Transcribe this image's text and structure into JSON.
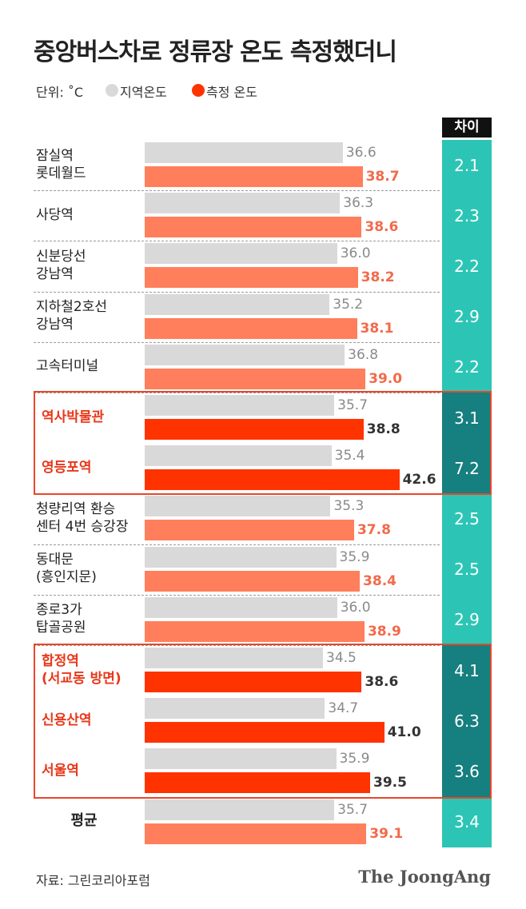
{
  "title": "중앙버스차로 정류장 온도 측정했더니",
  "unit": "단위: ˚C",
  "footer": {
    "source": "자료: 그린코리아포럼",
    "brand": "The JoongAng"
  },
  "chart_data": {
    "type": "bar",
    "orientation": "horizontal",
    "categories": [
      "잠실역\n롯데월드",
      "사당역",
      "신분당선\n강남역",
      "지하철2호선\n강남역",
      "고속터미널",
      "역사박물관",
      "영등포역",
      "청량리역 환승\n센터 4번 승강장",
      "동대문\n(흥인지문)",
      "종로3가\n탑골공원",
      "합정역\n(서교동 방면)",
      "신용산역",
      "서울역",
      "평균"
    ],
    "series": [
      {
        "name": "지역온도",
        "color": "#d9d9d9",
        "label_color": "#8a8a8a",
        "values": [
          36.6,
          36.3,
          36.0,
          35.2,
          36.8,
          35.7,
          35.4,
          35.3,
          35.9,
          36.0,
          34.5,
          34.7,
          35.9,
          35.7
        ],
        "value_labels": [
          "36.6",
          "36.3",
          "36.0",
          "35.2",
          "36.8",
          "35.7",
          "35.4",
          "35.3",
          "35.9",
          "36.0",
          "34.5",
          "34.7",
          "35.9",
          "35.7"
        ]
      },
      {
        "name": "측정 온도",
        "color": "#ff7f5c",
        "highlight_color": "#ff3300",
        "label_color": "#f26a4a",
        "highlight_label_color": "#333333",
        "values": [
          38.7,
          38.6,
          38.2,
          38.1,
          39.0,
          38.8,
          42.6,
          37.8,
          38.4,
          38.9,
          38.6,
          41.0,
          39.5,
          39.1
        ],
        "value_labels": [
          "38.7",
          "38.6",
          "38.2",
          "38.1",
          "39.0",
          "38.8",
          "42.6",
          "37.8",
          "38.4",
          "38.9",
          "38.6",
          "41.0",
          "39.5",
          "39.1"
        ]
      }
    ],
    "difference": {
      "name": "차이",
      "color": "#2cc5b5",
      "highlight_color": "#167f7f",
      "values": [
        2.1,
        2.3,
        2.2,
        2.9,
        2.2,
        3.1,
        7.2,
        2.5,
        2.5,
        2.9,
        4.1,
        6.3,
        3.6,
        3.4
      ]
    },
    "highlight": [
      5,
      6,
      10,
      11,
      12
    ],
    "xlim": [
      15.6,
      45
    ]
  }
}
